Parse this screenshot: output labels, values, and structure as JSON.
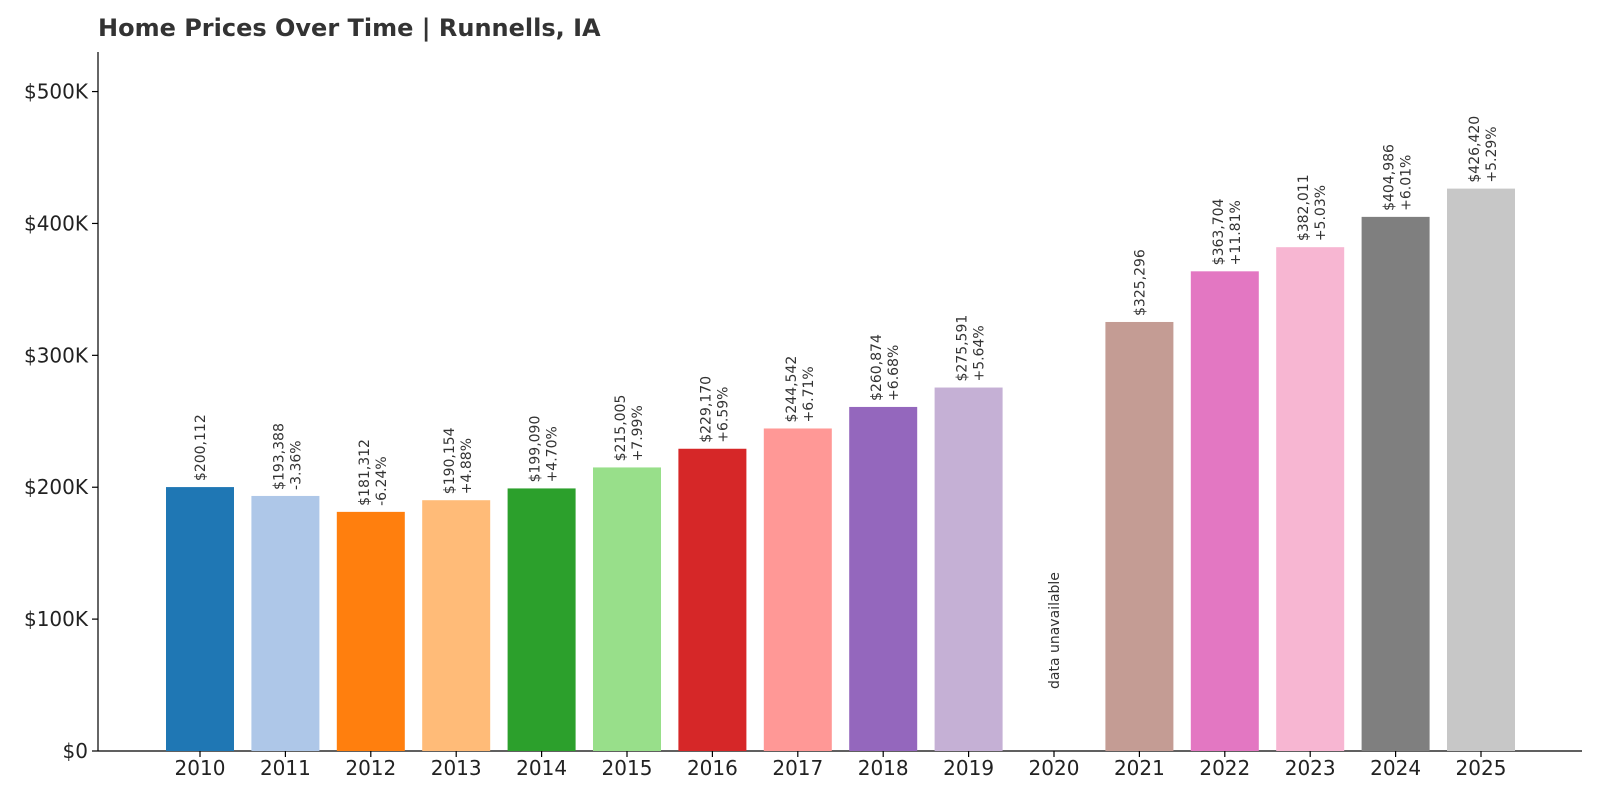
{
  "chart_data": {
    "type": "bar",
    "title": "Home Prices Over Time | Runnells, IA",
    "xlabel": "",
    "ylabel": "",
    "ylim": [
      0,
      530000
    ],
    "yticks": [
      0,
      100000,
      200000,
      300000,
      400000,
      500000
    ],
    "ytick_labels": [
      "$0",
      "$100K",
      "$200K",
      "$300K",
      "$400K",
      "$500K"
    ],
    "grid": false,
    "legend": "none",
    "categories": [
      "2010",
      "2011",
      "2012",
      "2013",
      "2014",
      "2015",
      "2016",
      "2017",
      "2018",
      "2019",
      "2020",
      "2021",
      "2022",
      "2023",
      "2024",
      "2025"
    ],
    "values": [
      200112,
      193388,
      181312,
      190154,
      199090,
      215005,
      229170,
      244542,
      260874,
      275591,
      null,
      325296,
      363704,
      382011,
      404986,
      426420
    ],
    "value_labels": [
      "$200,112",
      "$193,388",
      "$181,312",
      "$190,154",
      "$199,090",
      "$215,005",
      "$229,170",
      "$244,542",
      "$260,874",
      "$275,591",
      "",
      "$325,296",
      "$363,704",
      "$382,011",
      "$404,986",
      "$426,420"
    ],
    "change_labels": [
      "",
      "-3.36%",
      "-6.24%",
      "+4.88%",
      "+4.70%",
      "+7.99%",
      "+6.59%",
      "+6.71%",
      "+6.68%",
      "+5.64%",
      "",
      "",
      "+11.81%",
      "+5.03%",
      "+6.01%",
      "+5.29%"
    ],
    "missing_label": "data unavailable",
    "colors": [
      "#1f77b4",
      "#aec7e8",
      "#ff7f0e",
      "#ffbb78",
      "#2ca02c",
      "#98df8a",
      "#d62728",
      "#ff9896",
      "#9467bd",
      "#c5b0d5",
      "#8c564b",
      "#c49c94",
      "#e377c2",
      "#f7b6d2",
      "#7f7f7f",
      "#c7c7c7"
    ]
  }
}
